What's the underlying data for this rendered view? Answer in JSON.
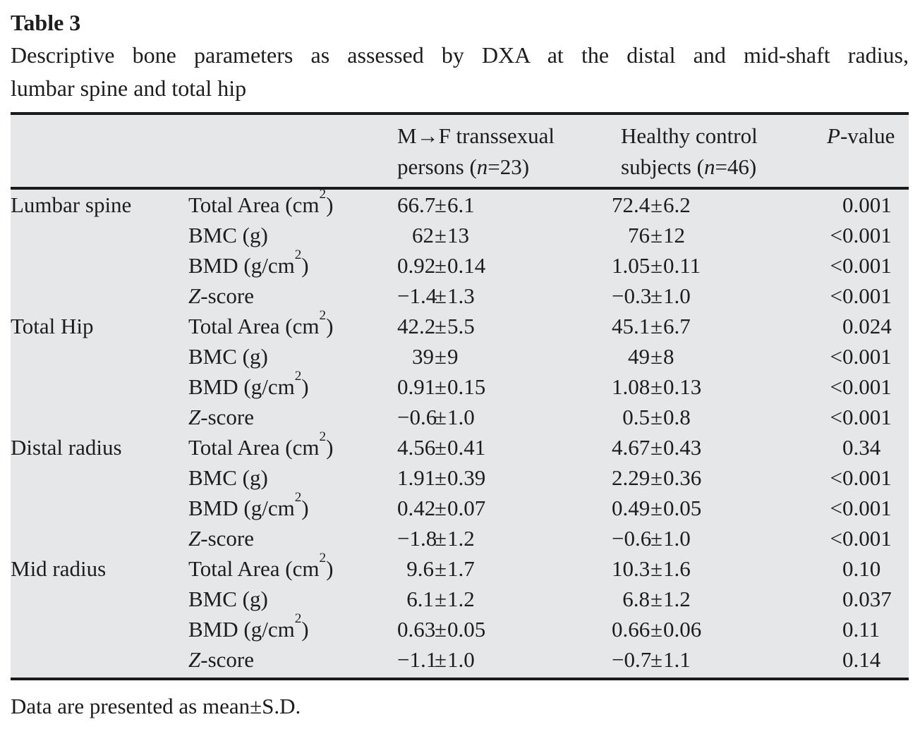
{
  "page": {
    "label": "Table 3",
    "caption_lines": [
      "Descriptive bone parameters as assessed by DXA at the distal and mid-shaft radius,",
      "lumbar spine and total hip"
    ],
    "footnote": "Data are presented as mean±S.D."
  },
  "colors": {
    "table_bg": "#e6e7e8",
    "rule": "#1b1b1b",
    "text": "#1d1d1d"
  },
  "table": {
    "header": {
      "mf": {
        "line1": "M→F transsexual",
        "line2": [
          {
            "t": "persons ("
          },
          {
            "t": "n",
            "s": "i"
          },
          {
            "t": "=23)"
          }
        ]
      },
      "hc": {
        "line1": "Healthy control",
        "line2": [
          {
            "t": "subjects ("
          },
          {
            "t": "n",
            "s": "i"
          },
          {
            "t": "=46)"
          }
        ]
      },
      "p_label": [
        {
          "t": "P",
          "s": "i"
        },
        {
          "t": "-value"
        }
      ]
    },
    "sections": [
      {
        "region": "Lumbar spine",
        "rows": [
          {
            "param": [
              {
                "t": "Total Area (cm"
              },
              {
                "t": "2",
                "s": "sup"
              },
              {
                "t": ")"
              }
            ],
            "mf": "66.7±6.1",
            "hc": "72.4±6.2",
            "p": "0.001"
          },
          {
            "param": [
              {
                "t": "BMC (g)"
              }
            ],
            "mf": "62±13",
            "hc": "76±12",
            "p": "<0.001"
          },
          {
            "param": [
              {
                "t": "BMD (g/cm"
              },
              {
                "t": "2",
                "s": "sup"
              },
              {
                "t": ")"
              }
            ],
            "mf": "0.92±0.14",
            "hc": "1.05±0.11",
            "p": "<0.001"
          },
          {
            "param": [
              {
                "t": "Z",
                "s": "i"
              },
              {
                "t": "-score"
              }
            ],
            "mf": "−1.4±1.3",
            "hc": "−0.3±1.0",
            "p": "<0.001"
          }
        ]
      },
      {
        "region": "Total Hip",
        "rows": [
          {
            "param": [
              {
                "t": "Total Area (cm"
              },
              {
                "t": "2",
                "s": "sup"
              },
              {
                "t": ")"
              }
            ],
            "mf": "42.2±5.5",
            "hc": "45.1±6.7",
            "p": "0.024"
          },
          {
            "param": [
              {
                "t": "BMC (g)"
              }
            ],
            "mf": "39±9",
            "hc": "49±8",
            "p": "<0.001"
          },
          {
            "param": [
              {
                "t": "BMD (g/cm"
              },
              {
                "t": "2",
                "s": "sup"
              },
              {
                "t": ")"
              }
            ],
            "mf": "0.91±0.15",
            "hc": "1.08±0.13",
            "p": "<0.001"
          },
          {
            "param": [
              {
                "t": "Z",
                "s": "i"
              },
              {
                "t": "-score"
              }
            ],
            "mf": "−0.6±1.0",
            "hc": "0.5±0.8",
            "p": "<0.001"
          }
        ]
      },
      {
        "region": "Distal radius",
        "rows": [
          {
            "param": [
              {
                "t": "Total Area (cm"
              },
              {
                "t": "2",
                "s": "sup"
              },
              {
                "t": ")"
              }
            ],
            "mf": "4.56±0.41",
            "hc": "4.67±0.43",
            "p": "0.34"
          },
          {
            "param": [
              {
                "t": "BMC (g)"
              }
            ],
            "mf": "1.91±0.39",
            "hc": "2.29±0.36",
            "p": "<0.001"
          },
          {
            "param": [
              {
                "t": "BMD (g/cm"
              },
              {
                "t": "2",
                "s": "sup"
              },
              {
                "t": ")"
              }
            ],
            "mf": "0.42±0.07",
            "hc": "0.49±0.05",
            "p": "<0.001"
          },
          {
            "param": [
              {
                "t": "Z",
                "s": "i"
              },
              {
                "t": "-score"
              }
            ],
            "mf": "−1.8±1.2",
            "hc": "−0.6±1.0",
            "p": "<0.001"
          }
        ]
      },
      {
        "region": "Mid radius",
        "rows": [
          {
            "param": [
              {
                "t": "Total Area (cm"
              },
              {
                "t": "2",
                "s": "sup"
              },
              {
                "t": ")"
              }
            ],
            "mf": "9.6±1.7",
            "hc": "10.3±1.6",
            "p": "0.10"
          },
          {
            "param": [
              {
                "t": "BMC (g)"
              }
            ],
            "mf": "6.1±1.2",
            "hc": "6.8±1.2",
            "p": "0.037"
          },
          {
            "param": [
              {
                "t": "BMD (g/cm"
              },
              {
                "t": "2",
                "s": "sup"
              },
              {
                "t": ")"
              }
            ],
            "mf": "0.63±0.05",
            "hc": "0.66±0.06",
            "p": "0.11"
          },
          {
            "param": [
              {
                "t": "Z",
                "s": "i"
              },
              {
                "t": "-score"
              }
            ],
            "mf": "−1.1±1.0",
            "hc": "−0.7±1.1",
            "p": "0.14"
          }
        ]
      }
    ]
  }
}
